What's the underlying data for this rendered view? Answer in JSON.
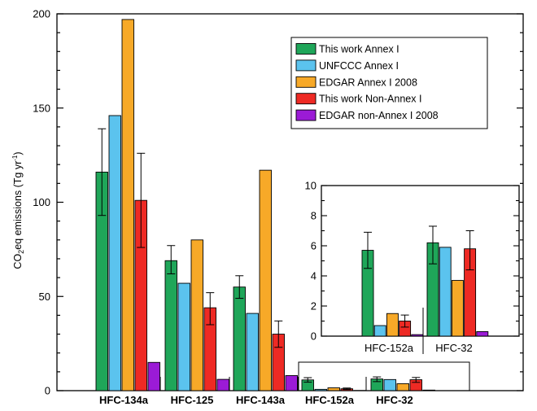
{
  "colors": {
    "this_work_annex": "#1fa659",
    "unfccc_annex": "#5bc3ee",
    "edgar_annex": "#f7a928",
    "this_work_non_annex": "#ee2a24",
    "edgar_non_annex": "#9b1bd6"
  },
  "chart_data": [
    {
      "type": "bar",
      "categories": [
        "HFC-134a",
        "HFC-125",
        "HFC-143a",
        "HFC-152a",
        "HFC-32"
      ],
      "ylabel": "CO2eq emissions (Tg yr-1)",
      "ylabel_parts": {
        "main": "CO",
        "sub": "2",
        "mid": "eq emissions (Tg yr",
        "sup": "-1",
        "end": ")"
      },
      "ylim": [
        0,
        200
      ],
      "yticks": [
        "0",
        "50",
        "100",
        "150",
        "200"
      ],
      "legend_position": "top-right",
      "series": [
        {
          "name": "This work Annex I",
          "color_key": "this_work_annex",
          "values": [
            116,
            69,
            55,
            5.7,
            6.2
          ],
          "err_low": [
            93,
            62,
            49,
            4.5,
            4.8
          ],
          "err_high": [
            139,
            77,
            61,
            6.9,
            7.3
          ]
        },
        {
          "name": "UNFCCC Annex I",
          "color_key": "unfccc_annex",
          "values": [
            146,
            57,
            41,
            0.7,
            5.9
          ]
        },
        {
          "name": "EDGAR Annex I 2008",
          "color_key": "edgar_annex",
          "values": [
            197,
            80,
            117,
            1.5,
            3.7
          ]
        },
        {
          "name": "This work Non-Annex I",
          "color_key": "this_work_non_annex",
          "values": [
            101,
            44,
            30,
            1.0,
            5.8
          ],
          "err_low": [
            76,
            35,
            23,
            0.6,
            4.4
          ],
          "err_high": [
            126,
            52,
            37,
            1.4,
            7.0
          ]
        },
        {
          "name": "EDGAR non-Annex I 2008",
          "color_key": "edgar_non_annex",
          "values": [
            15,
            6,
            8,
            0.1,
            0.3
          ]
        }
      ]
    },
    {
      "type": "bar",
      "inset": true,
      "categories": [
        "HFC-152a",
        "HFC-32"
      ],
      "ylim": [
        0,
        10
      ],
      "yticks": [
        "0",
        "2",
        "4",
        "6",
        "8",
        "10"
      ],
      "series": [
        {
          "name": "This work Annex I",
          "color_key": "this_work_annex",
          "values": [
            5.7,
            6.2
          ],
          "err_low": [
            4.5,
            4.8
          ],
          "err_high": [
            6.9,
            7.3
          ]
        },
        {
          "name": "UNFCCC Annex I",
          "color_key": "unfccc_annex",
          "values": [
            0.7,
            5.9
          ]
        },
        {
          "name": "EDGAR Annex I 2008",
          "color_key": "edgar_annex",
          "values": [
            1.5,
            3.7
          ]
        },
        {
          "name": "This work Non-Annex I",
          "color_key": "this_work_non_annex",
          "values": [
            1.0,
            5.8
          ],
          "err_low": [
            0.6,
            4.4
          ],
          "err_high": [
            1.4,
            7.0
          ]
        },
        {
          "name": "EDGAR non-Annex I 2008",
          "color_key": "edgar_non_annex",
          "values": [
            0.1,
            0.3
          ]
        }
      ]
    }
  ]
}
